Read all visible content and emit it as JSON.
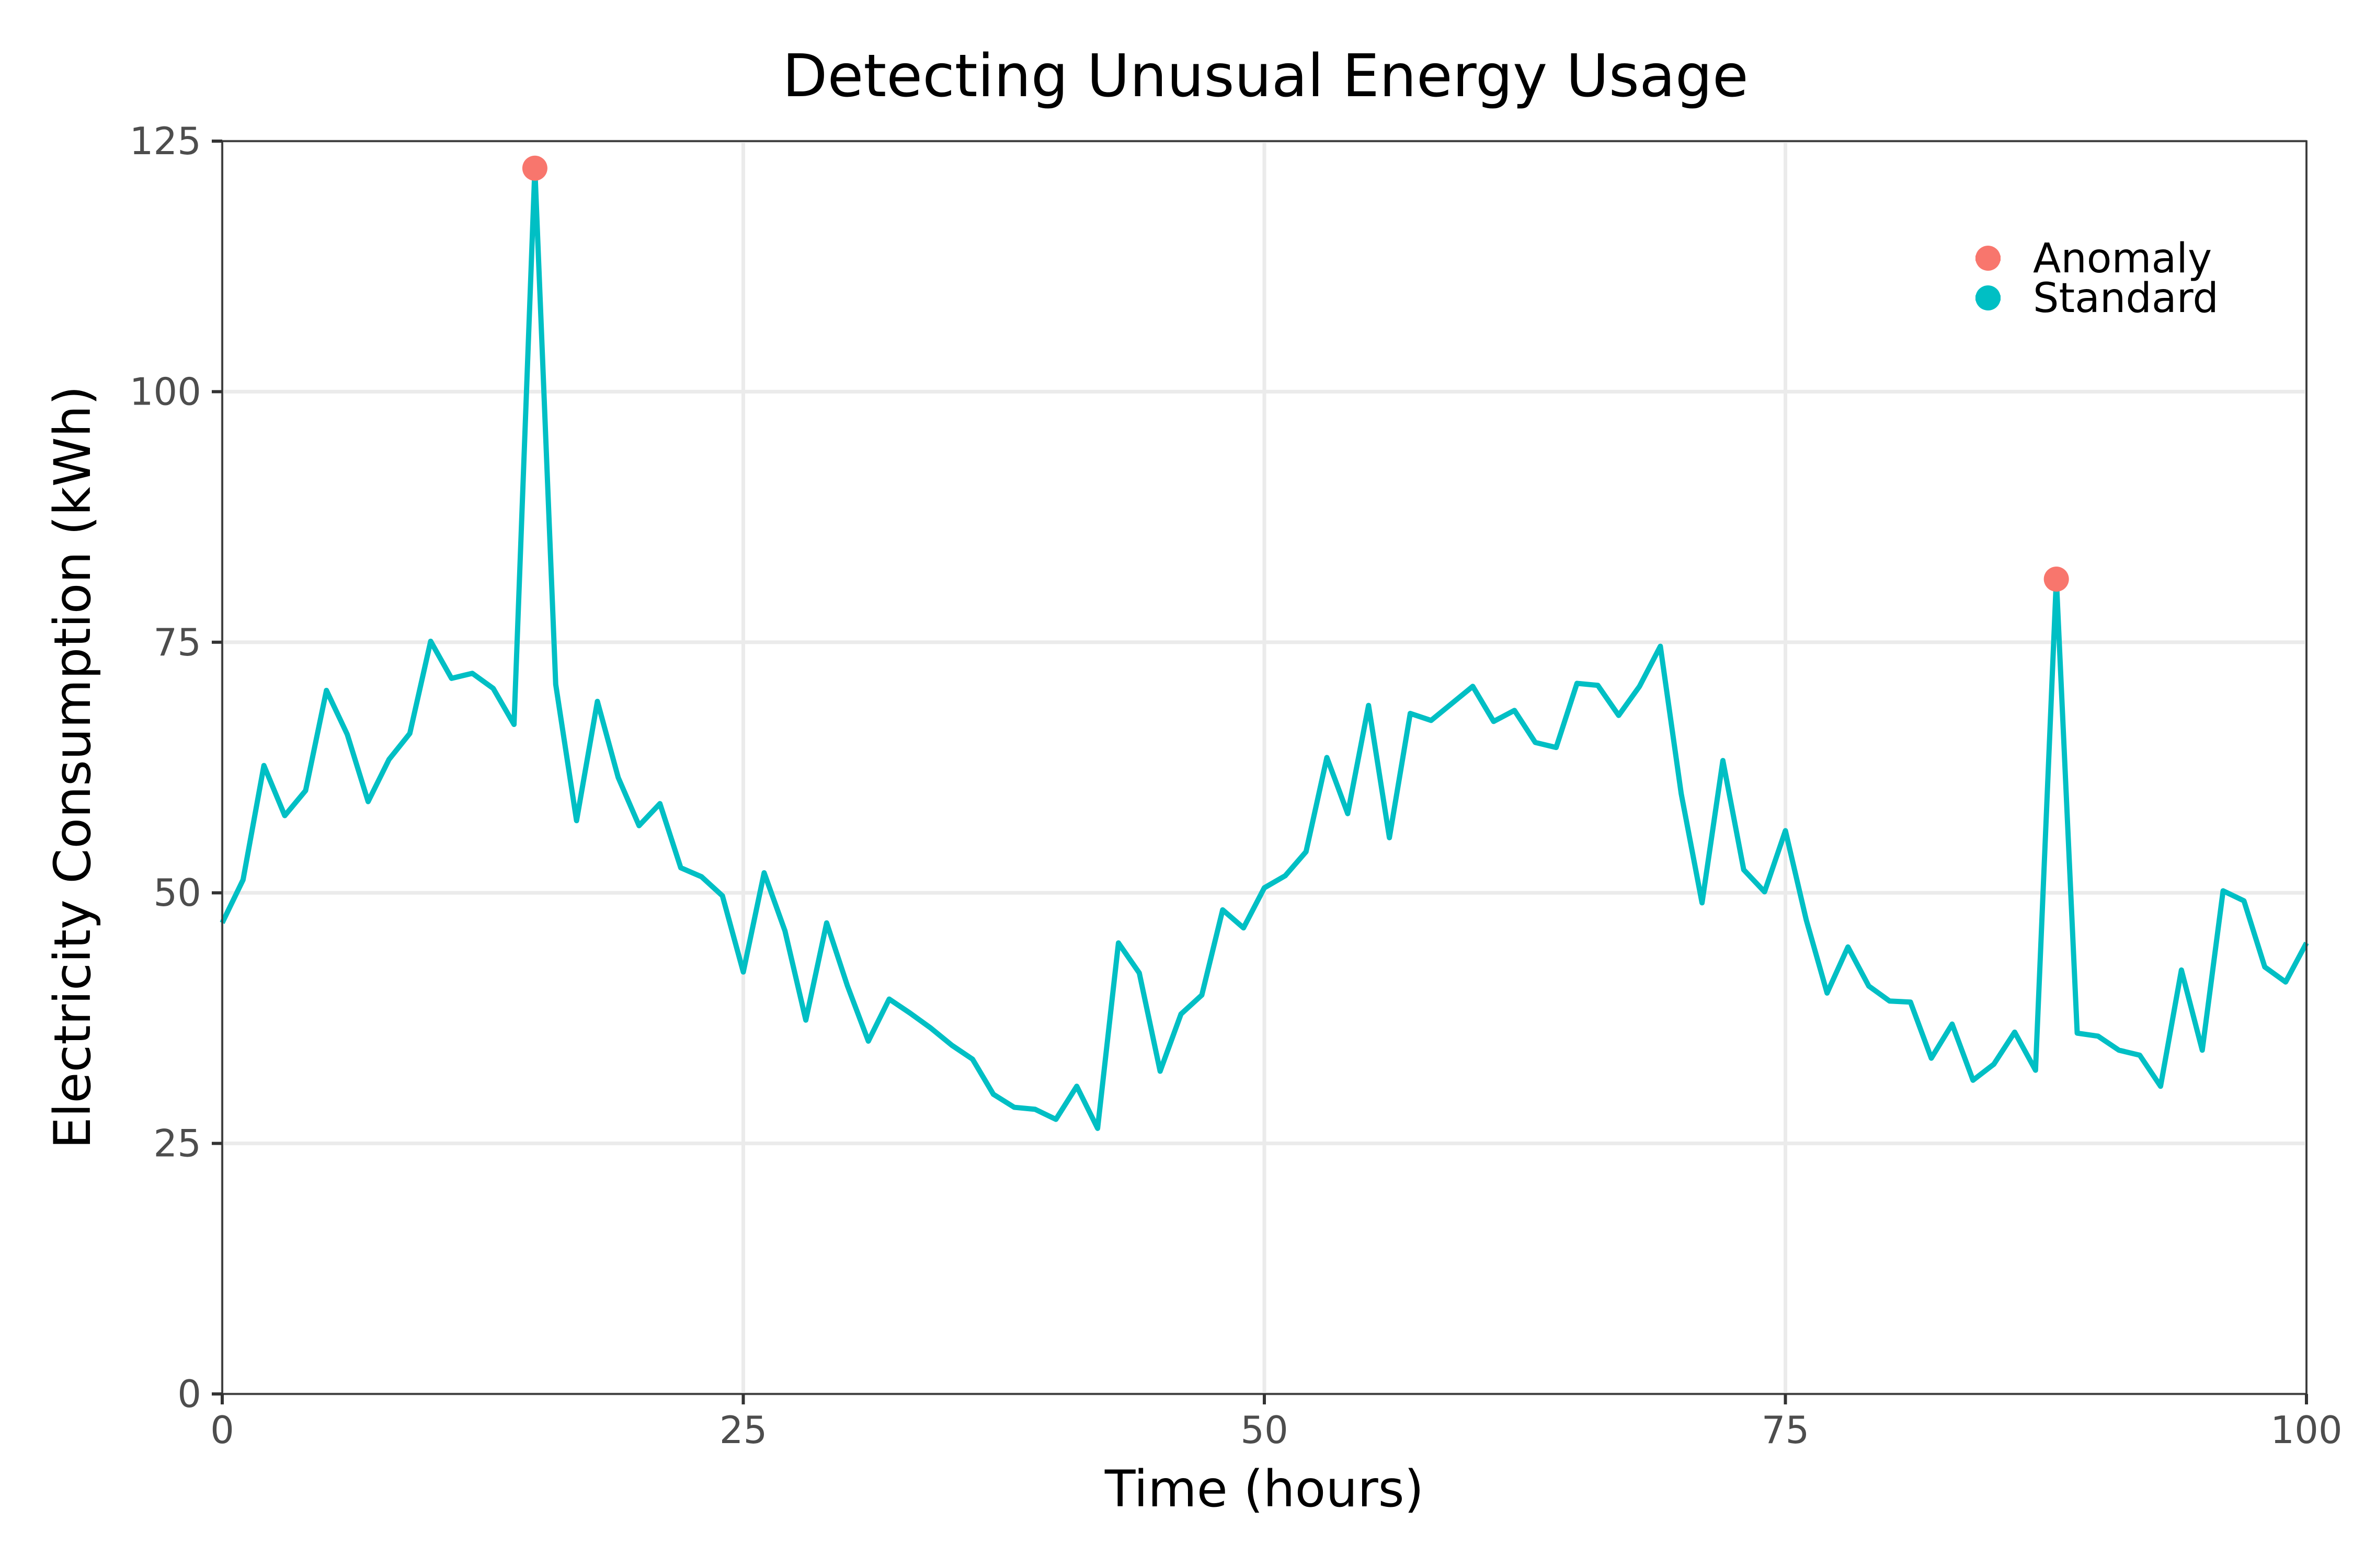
{
  "chart_data": {
    "type": "line",
    "title": "Detecting Unusual Energy Usage",
    "xlabel": "Time (hours)",
    "ylabel": "Electricity Consumption (kWh)",
    "xlim": [
      0,
      100
    ],
    "ylim": [
      0,
      125
    ],
    "x_ticks": [
      "0",
      "25",
      "50",
      "75",
      "100"
    ],
    "x_tick_values": [
      0,
      25,
      50,
      75,
      100
    ],
    "y_ticks": [
      "0",
      "25",
      "50",
      "75",
      "100",
      "125"
    ],
    "y_tick_values": [
      0,
      25,
      50,
      75,
      100,
      125
    ],
    "grid": true,
    "legend_position": "top-right",
    "colors": {
      "anomaly": "#F8766D",
      "standard": "#00BFC4"
    },
    "series": [
      {
        "name": "Standard",
        "values": [
          47,
          51.3,
          62.7,
          57.7,
          60.2,
          70.2,
          65.8,
          59.1,
          63.3,
          65.9,
          75.1,
          71.4,
          71.9,
          70.4,
          66.8,
          122.3,
          70.8,
          57.2,
          69.1,
          61.5,
          56.7,
          58.9,
          52.5,
          51.6,
          49.7,
          42.1,
          52,
          46.2,
          37.3,
          47,
          40.7,
          35.2,
          39.4,
          38,
          36.5,
          34.8,
          33.4,
          29.9,
          28.6,
          28.4,
          27.4,
          30.7,
          26.5,
          45,
          42,
          32.2,
          37.9,
          39.8,
          48.3,
          46.5,
          50.5,
          51.7,
          54.1,
          63.5,
          57.9,
          68.7,
          55.5,
          67.9,
          67.2,
          68.9,
          70.6,
          67.1,
          68.2,
          65,
          64.5,
          70.9,
          70.7,
          67.7,
          70.6,
          74.6,
          59.9,
          49,
          63.2,
          52.3,
          50.1,
          56.2,
          47.3,
          40,
          44.6,
          40.7,
          39.2,
          39.1,
          33.5,
          36.9,
          31.3,
          32.9,
          36.1,
          32.3,
          81.3,
          36,
          35.7,
          34.3,
          33.8,
          30.7,
          42.3,
          34.3,
          50.2,
          49.2,
          42.6,
          41.1,
          45
        ]
      },
      {
        "name": "Anomaly",
        "points": [
          {
            "x": 15,
            "y": 122.3
          },
          {
            "x": 88,
            "y": 81.3
          }
        ]
      }
    ],
    "legend": [
      {
        "label": "Anomaly",
        "color": "#F8766D"
      },
      {
        "label": "Standard",
        "color": "#00BFC4"
      }
    ]
  }
}
